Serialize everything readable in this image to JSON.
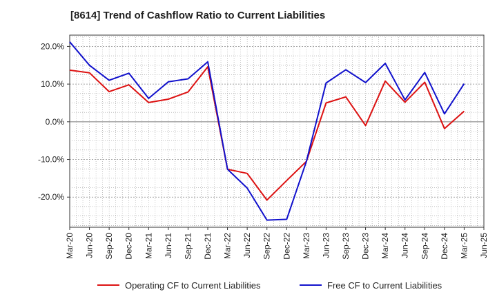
{
  "chart_data": {
    "type": "line",
    "title": "[8614]  Trend of Cashflow Ratio to Current Liabilities",
    "xlabel": "",
    "ylabel": "",
    "ylim": [
      -28,
      23
    ],
    "y_ticks": [
      20,
      10,
      0,
      -10,
      -20
    ],
    "y_tick_labels": [
      "20.0%",
      "10.0%",
      "0.0%",
      "-10.0%",
      "-20.0%"
    ],
    "x_tick_labels": [
      "Mar-20",
      "Jun-20",
      "Sep-20",
      "Dec-20",
      "Mar-21",
      "Jun-21",
      "Sep-21",
      "Dec-21",
      "Mar-22",
      "Jun-22",
      "Sep-22",
      "Dec-22",
      "Mar-23",
      "Jun-23",
      "Sep-23",
      "Dec-23",
      "Mar-24",
      "Jun-24",
      "Sep-24",
      "Dec-24",
      "Mar-25",
      "Jun-25"
    ],
    "x": [
      "Mar-20",
      "Jun-20",
      "Sep-20",
      "Dec-20",
      "Mar-21",
      "Jun-21",
      "Sep-21",
      "Dec-21",
      "Mar-22",
      "Jun-22",
      "Sep-22",
      "Dec-22",
      "Mar-23",
      "Jun-23",
      "Sep-23",
      "Dec-23",
      "Mar-24",
      "Jun-24",
      "Sep-24",
      "Dec-24",
      "Mar-25"
    ],
    "grid": true,
    "legend_position": "bottom",
    "series": [
      {
        "name": "Operating CF to Current Liabilities",
        "color": "#dd1111",
        "values": [
          13.7,
          13.0,
          8.0,
          9.8,
          5.1,
          6.0,
          7.9,
          14.6,
          -12.6,
          -13.7,
          -20.8,
          -15.6,
          -10.5,
          5.0,
          6.6,
          -1.0,
          10.8,
          5.2,
          10.5,
          -1.8,
          2.8
        ]
      },
      {
        "name": "Free CF to Current Liabilities",
        "color": "#1111cc",
        "values": [
          21.2,
          15.0,
          11.0,
          12.9,
          6.2,
          10.6,
          11.4,
          15.9,
          -12.6,
          -17.6,
          -26.1,
          -25.9,
          -10.5,
          10.3,
          13.8,
          10.4,
          15.5,
          5.8,
          13.1,
          2.1,
          10.1
        ]
      }
    ]
  }
}
